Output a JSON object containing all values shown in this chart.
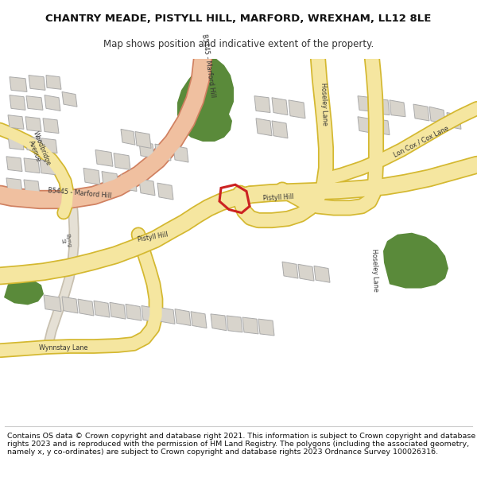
{
  "title": "CHANTRY MEADE, PISTYLL HILL, MARFORD, WREXHAM, LL12 8LE",
  "subtitle": "Map shows position and indicative extent of the property.",
  "footer": "Contains OS data © Crown copyright and database right 2021. This information is subject to Crown copyright and database rights 2023 and is reproduced with the permission of HM Land Registry. The polygons (including the associated geometry, namely x, y co-ordinates) are subject to Crown copyright and database rights 2023 Ordnance Survey 100026316.",
  "bg_color": "#ffffff",
  "map_bg": "#f0efe8",
  "road_yellow": "#f5e6a0",
  "road_yellow_border": "#d4b830",
  "road_pink": "#f0c0a0",
  "road_pink_border": "#d08060",
  "green_color": "#5a8a3a",
  "building_color": "#d8d4cc",
  "building_border": "#aaaaaa",
  "plot_color": "#cc2222",
  "text_color": "#333333"
}
